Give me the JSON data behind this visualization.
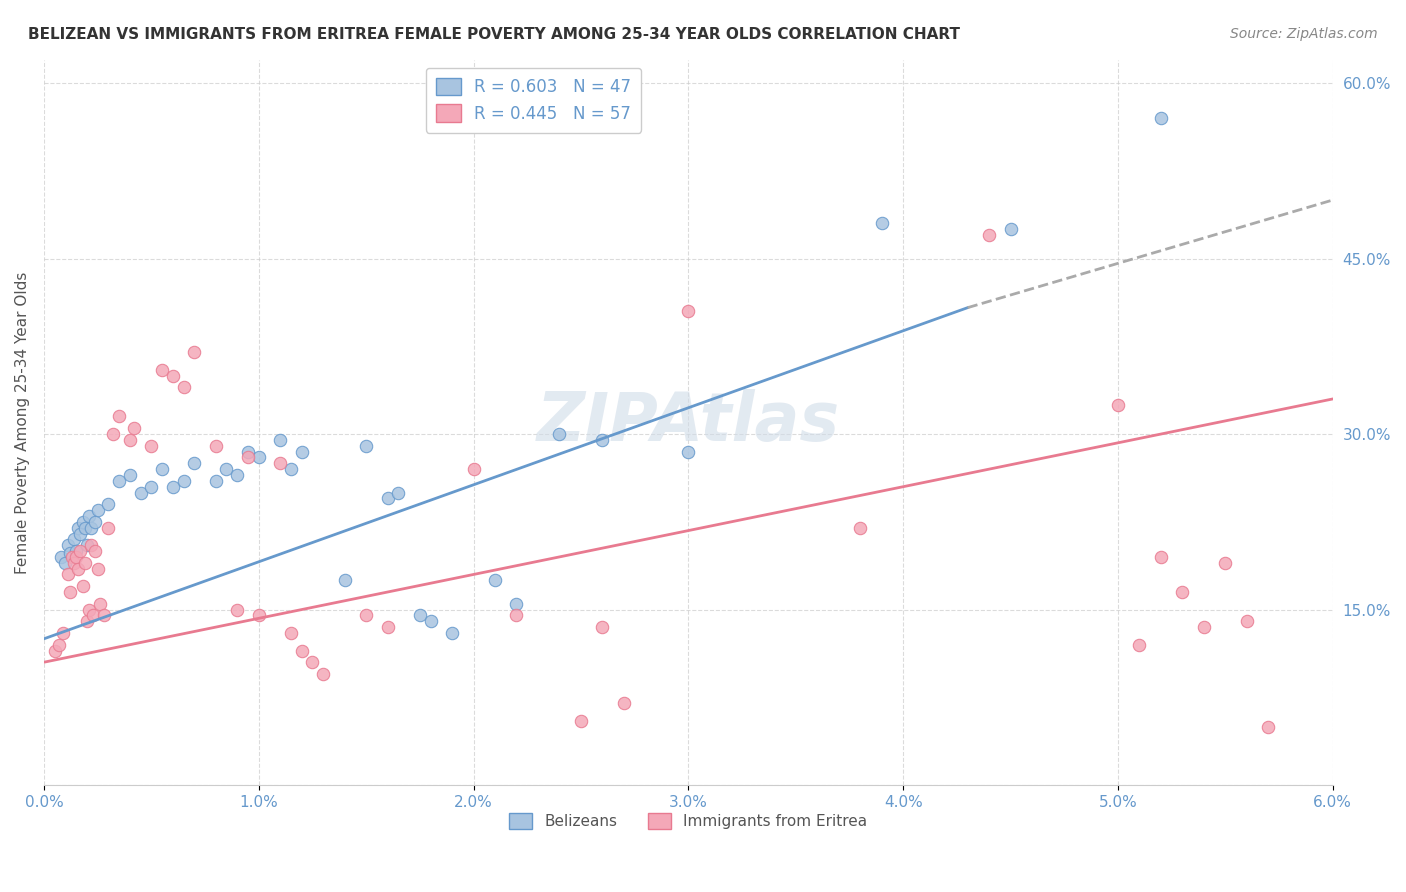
{
  "title": "BELIZEAN VS IMMIGRANTS FROM ERITREA FEMALE POVERTY AMONG 25-34 YEAR OLDS CORRELATION CHART",
  "source": "Source: ZipAtlas.com",
  "ylabel": "Female Poverty Among 25-34 Year Olds",
  "xlim": [
    0.0,
    6.0
  ],
  "ylim": [
    0.0,
    62.0
  ],
  "ytick_vals": [
    0,
    15.0,
    30.0,
    45.0,
    60.0
  ],
  "ytick_labels": [
    "",
    "15.0%",
    "30.0%",
    "45.0%",
    "60.0%"
  ],
  "xtick_vals": [
    0.0,
    1.0,
    2.0,
    3.0,
    4.0,
    5.0,
    6.0
  ],
  "watermark": "ZIPAtlas",
  "legend_upper": [
    {
      "label": "R = 0.603   N = 47"
    },
    {
      "label": "R = 0.445   N = 57"
    }
  ],
  "belizean_color": "#a8c4e0",
  "eritrea_color": "#f4a8b8",
  "belizean_scatter": [
    [
      0.08,
      19.5
    ],
    [
      0.1,
      19.0
    ],
    [
      0.11,
      20.5
    ],
    [
      0.12,
      19.8
    ],
    [
      0.14,
      21.0
    ],
    [
      0.15,
      20.0
    ],
    [
      0.16,
      22.0
    ],
    [
      0.17,
      21.5
    ],
    [
      0.18,
      22.5
    ],
    [
      0.19,
      22.0
    ],
    [
      0.2,
      20.5
    ],
    [
      0.21,
      23.0
    ],
    [
      0.22,
      22.0
    ],
    [
      0.24,
      22.5
    ],
    [
      0.25,
      23.5
    ],
    [
      0.3,
      24.0
    ],
    [
      0.35,
      26.0
    ],
    [
      0.4,
      26.5
    ],
    [
      0.45,
      25.0
    ],
    [
      0.5,
      25.5
    ],
    [
      0.55,
      27.0
    ],
    [
      0.6,
      25.5
    ],
    [
      0.65,
      26.0
    ],
    [
      0.7,
      27.5
    ],
    [
      0.8,
      26.0
    ],
    [
      0.85,
      27.0
    ],
    [
      0.9,
      26.5
    ],
    [
      0.95,
      28.5
    ],
    [
      1.0,
      28.0
    ],
    [
      1.1,
      29.5
    ],
    [
      1.15,
      27.0
    ],
    [
      1.2,
      28.5
    ],
    [
      1.4,
      17.5
    ],
    [
      1.5,
      29.0
    ],
    [
      1.6,
      24.5
    ],
    [
      1.65,
      25.0
    ],
    [
      1.75,
      14.5
    ],
    [
      1.8,
      14.0
    ],
    [
      1.9,
      13.0
    ],
    [
      2.1,
      17.5
    ],
    [
      2.2,
      15.5
    ],
    [
      2.4,
      30.0
    ],
    [
      2.6,
      29.5
    ],
    [
      3.0,
      28.5
    ],
    [
      3.9,
      48.0
    ],
    [
      4.5,
      47.5
    ],
    [
      5.2,
      57.0
    ]
  ],
  "eritrea_scatter": [
    [
      0.05,
      11.5
    ],
    [
      0.07,
      12.0
    ],
    [
      0.09,
      13.0
    ],
    [
      0.11,
      18.0
    ],
    [
      0.12,
      16.5
    ],
    [
      0.13,
      19.5
    ],
    [
      0.14,
      19.0
    ],
    [
      0.15,
      19.5
    ],
    [
      0.16,
      18.5
    ],
    [
      0.17,
      20.0
    ],
    [
      0.18,
      17.0
    ],
    [
      0.19,
      19.0
    ],
    [
      0.2,
      14.0
    ],
    [
      0.21,
      15.0
    ],
    [
      0.22,
      20.5
    ],
    [
      0.23,
      14.5
    ],
    [
      0.24,
      20.0
    ],
    [
      0.25,
      18.5
    ],
    [
      0.26,
      15.5
    ],
    [
      0.28,
      14.5
    ],
    [
      0.3,
      22.0
    ],
    [
      0.32,
      30.0
    ],
    [
      0.35,
      31.5
    ],
    [
      0.4,
      29.5
    ],
    [
      0.42,
      30.5
    ],
    [
      0.5,
      29.0
    ],
    [
      0.55,
      35.5
    ],
    [
      0.6,
      35.0
    ],
    [
      0.65,
      34.0
    ],
    [
      0.7,
      37.0
    ],
    [
      0.8,
      29.0
    ],
    [
      0.9,
      15.0
    ],
    [
      0.95,
      28.0
    ],
    [
      1.0,
      14.5
    ],
    [
      1.1,
      27.5
    ],
    [
      1.15,
      13.0
    ],
    [
      1.2,
      11.5
    ],
    [
      1.25,
      10.5
    ],
    [
      1.3,
      9.5
    ],
    [
      1.5,
      14.5
    ],
    [
      1.6,
      13.5
    ],
    [
      2.0,
      27.0
    ],
    [
      2.2,
      14.5
    ],
    [
      2.5,
      5.5
    ],
    [
      2.6,
      13.5
    ],
    [
      2.7,
      7.0
    ],
    [
      3.0,
      40.5
    ],
    [
      3.8,
      22.0
    ],
    [
      4.4,
      47.0
    ],
    [
      5.0,
      32.5
    ],
    [
      5.1,
      12.0
    ],
    [
      5.2,
      19.5
    ],
    [
      5.3,
      16.5
    ],
    [
      5.4,
      13.5
    ],
    [
      5.5,
      19.0
    ],
    [
      5.6,
      14.0
    ],
    [
      5.7,
      5.0
    ]
  ],
  "belizean_trendline_solid": {
    "x": [
      0.0,
      4.3
    ],
    "y": [
      12.5,
      40.8
    ]
  },
  "belizean_trendline_dashed": {
    "x": [
      4.3,
      6.0
    ],
    "y": [
      40.8,
      50.0
    ]
  },
  "eritrea_trendline": {
    "x": [
      0.0,
      6.0
    ],
    "y": [
      10.5,
      33.0
    ]
  },
  "blue_line_color": "#6699cc",
  "pink_line_color": "#e87a90",
  "dashed_line_color": "#aaaaaa",
  "grid_color": "#cccccc",
  "background_color": "#ffffff",
  "title_fontsize": 11,
  "source_fontsize": 10,
  "watermark_color": "#d0dce8",
  "watermark_fontsize": 48,
  "axis_label_color": "#6699cc",
  "ylabel_color": "#555555"
}
